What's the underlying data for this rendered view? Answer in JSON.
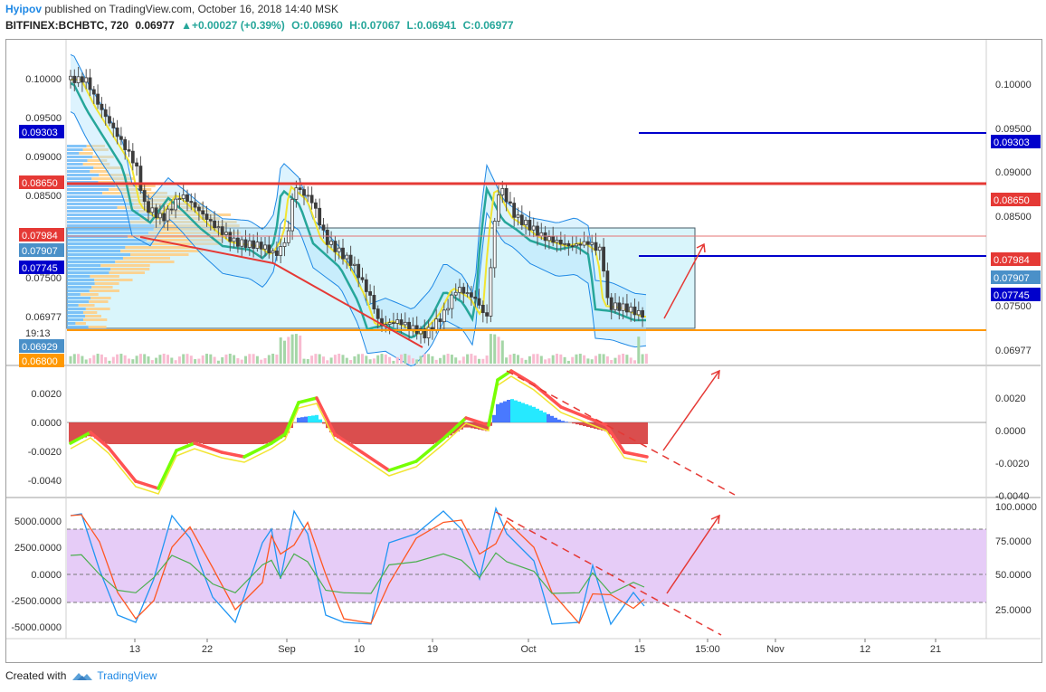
{
  "header": {
    "user": "Hyipov",
    "published_text": "published on TradingView.com, October 16, 2018 14:40 MSK",
    "symbol": "BITFINEX:BCHBTC, 720",
    "price": "0.06977",
    "change": "▲+0.00027 (+0.39%)",
    "open": "O:0.06960",
    "high": "H:0.07067",
    "low": "L:0.06941",
    "close": "C:0.06977"
  },
  "colors": {
    "up": "#26a69a",
    "down": "#ef5350",
    "candle_body": "#3c3c3c",
    "blue_level": "#0000cc",
    "red_level": "#e53935",
    "orange_level": "#ff9800",
    "box_fill": "#d9f5fb",
    "stoch_band": "#e6ccf7",
    "arrow": "#e53935"
  },
  "price_axis": {
    "right_ticks": [
      "0.10000",
      "0.09500",
      "0.09000",
      "0.08500",
      "0.06977"
    ],
    "right_badges": [
      {
        "label": "0.09303",
        "color": "#0000cc"
      },
      {
        "label": "0.08650",
        "color": "#e53935"
      },
      {
        "label": "0.07984",
        "color": "#e53935"
      },
      {
        "label": "0.07907",
        "color": "#4a90c8"
      },
      {
        "label": "0.07745",
        "color": "#0000cc"
      }
    ],
    "right_partial": "0.07500",
    "left_ticks": [
      "0.10000",
      "0.09500",
      "0.09000",
      "0.08500",
      "0.07500",
      "0.06977"
    ],
    "left_badges": [
      {
        "label": "0.09303",
        "color": "#0000cc"
      },
      {
        "label": "0.08650",
        "color": "#e53935"
      },
      {
        "label": "0.07984",
        "color": "#e53935"
      },
      {
        "label": "0.07907",
        "color": "#4a90c8"
      },
      {
        "label": "0.07745",
        "color": "#0000cc"
      },
      {
        "label": "0.06929",
        "color": "#4a90c8"
      },
      {
        "label": "0.06800",
        "color": "#ff9800"
      }
    ],
    "countdown": "19:13"
  },
  "macd_axis": {
    "right_ticks": [
      "0.0020",
      "0.0000",
      "-0.0020",
      "-0.0040"
    ],
    "left_ticks": [
      "0.0020",
      "0.0000",
      "-0.0020",
      "-0.0040"
    ]
  },
  "stoch_axis": {
    "right_ticks": [
      "100.0000",
      "75.0000",
      "50.0000",
      "25.0000"
    ],
    "left_ticks": [
      "5000.0000",
      "2500.0000",
      "0.0000",
      "-2500.0000",
      "-5000.0000"
    ]
  },
  "time_axis": [
    "13",
    "22",
    "Sep",
    "10",
    "19",
    "Oct",
    "15",
    "15:00",
    "Nov",
    "12",
    "21"
  ],
  "footer": {
    "created_with": "Created with",
    "brand": "TradingView"
  }
}
